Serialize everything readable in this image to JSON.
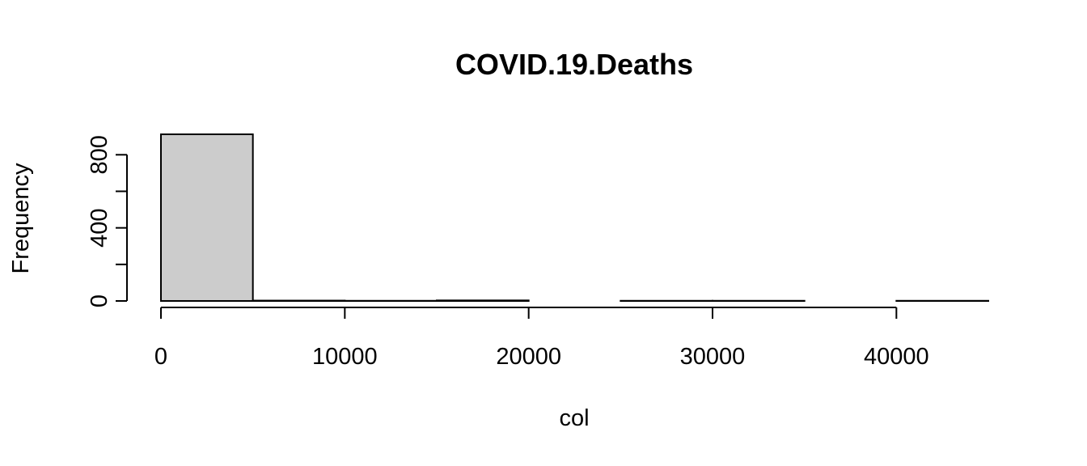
{
  "chart_data": {
    "type": "bar",
    "title": "COVID.19.Deaths",
    "xlabel": "col",
    "ylabel": "Frequency",
    "bins": [
      {
        "start": 0,
        "end": 5000,
        "count": 912
      },
      {
        "start": 5000,
        "end": 10000,
        "count": 2
      },
      {
        "start": 10000,
        "end": 15000,
        "count": 1
      },
      {
        "start": 15000,
        "end": 20000,
        "count": 3
      },
      {
        "start": 20000,
        "end": 25000,
        "count": 0
      },
      {
        "start": 25000,
        "end": 30000,
        "count": 1
      },
      {
        "start": 30000,
        "end": 35000,
        "count": 1
      },
      {
        "start": 35000,
        "end": 40000,
        "count": 0
      },
      {
        "start": 40000,
        "end": 45000,
        "count": 1
      }
    ],
    "xlim": [
      0,
      45000
    ],
    "ylim": [
      0,
      912
    ],
    "x_ticks": [
      0,
      10000,
      20000,
      30000,
      40000
    ],
    "x_tick_labels": [
      "0",
      "10000",
      "20000",
      "30000",
      "40000"
    ],
    "y_ticks": [
      0,
      200,
      400,
      600,
      800
    ],
    "y_tick_labels": [
      "0",
      "",
      "400",
      "",
      "800"
    ],
    "bar_color": "#cccccc",
    "grid": false,
    "legend": "none"
  }
}
